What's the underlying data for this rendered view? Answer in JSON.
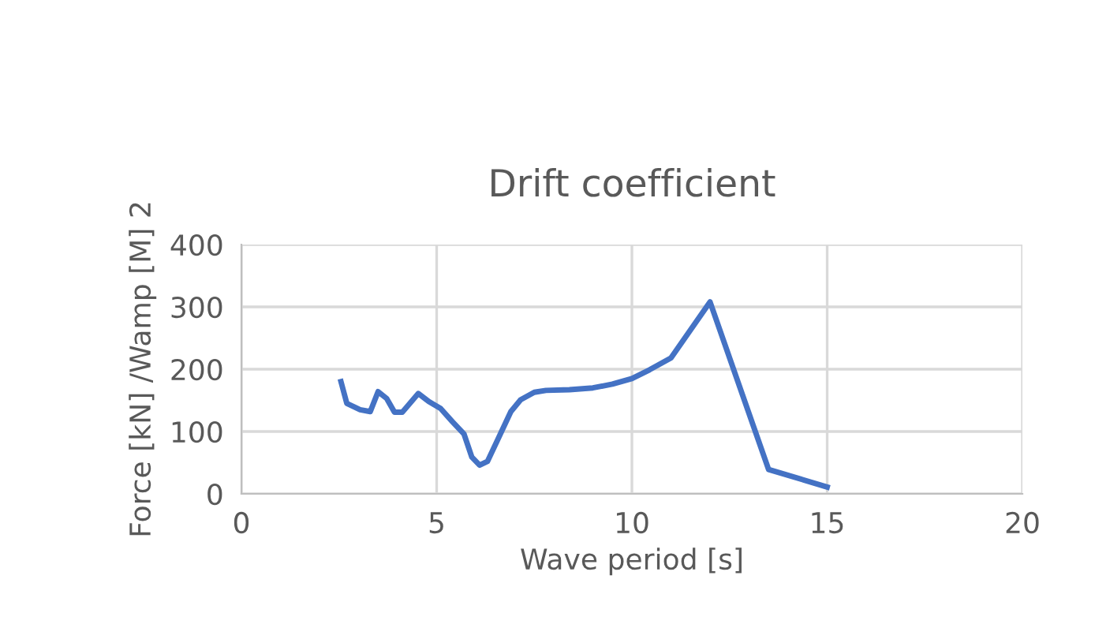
{
  "chart_data": {
    "type": "line",
    "title": "Drift coefficient",
    "xlabel": "Wave period [s]",
    "ylabel": "Force [kN] /Wamp [M] 2",
    "x": [
      2.55,
      2.7,
      3.04,
      3.3,
      3.5,
      3.72,
      3.92,
      4.12,
      4.53,
      4.8,
      5.1,
      5.4,
      5.7,
      5.9,
      6.1,
      6.3,
      6.55,
      6.9,
      7.15,
      7.5,
      7.8,
      8.4,
      9.0,
      9.5,
      10.0,
      10.45,
      11.0,
      12.0,
      13.5,
      15.0
    ],
    "series": [
      {
        "color": "#4472c4",
        "values": [
          180,
          145,
          135,
          132,
          164,
          153,
          131,
          131,
          161,
          148,
          137,
          116,
          96,
          59,
          46,
          52,
          85,
          132,
          151,
          163,
          166,
          167,
          170,
          176,
          185,
          199,
          218,
          308,
          39,
          11
        ]
      }
    ],
    "xlim": [
      0,
      20
    ],
    "xticks": [
      0,
      5,
      10,
      15,
      20
    ],
    "ylim": [
      0,
      400
    ],
    "yticks": [
      0,
      100,
      200,
      300,
      400
    ],
    "grid": true,
    "marker": "none",
    "line_style": "solid"
  }
}
